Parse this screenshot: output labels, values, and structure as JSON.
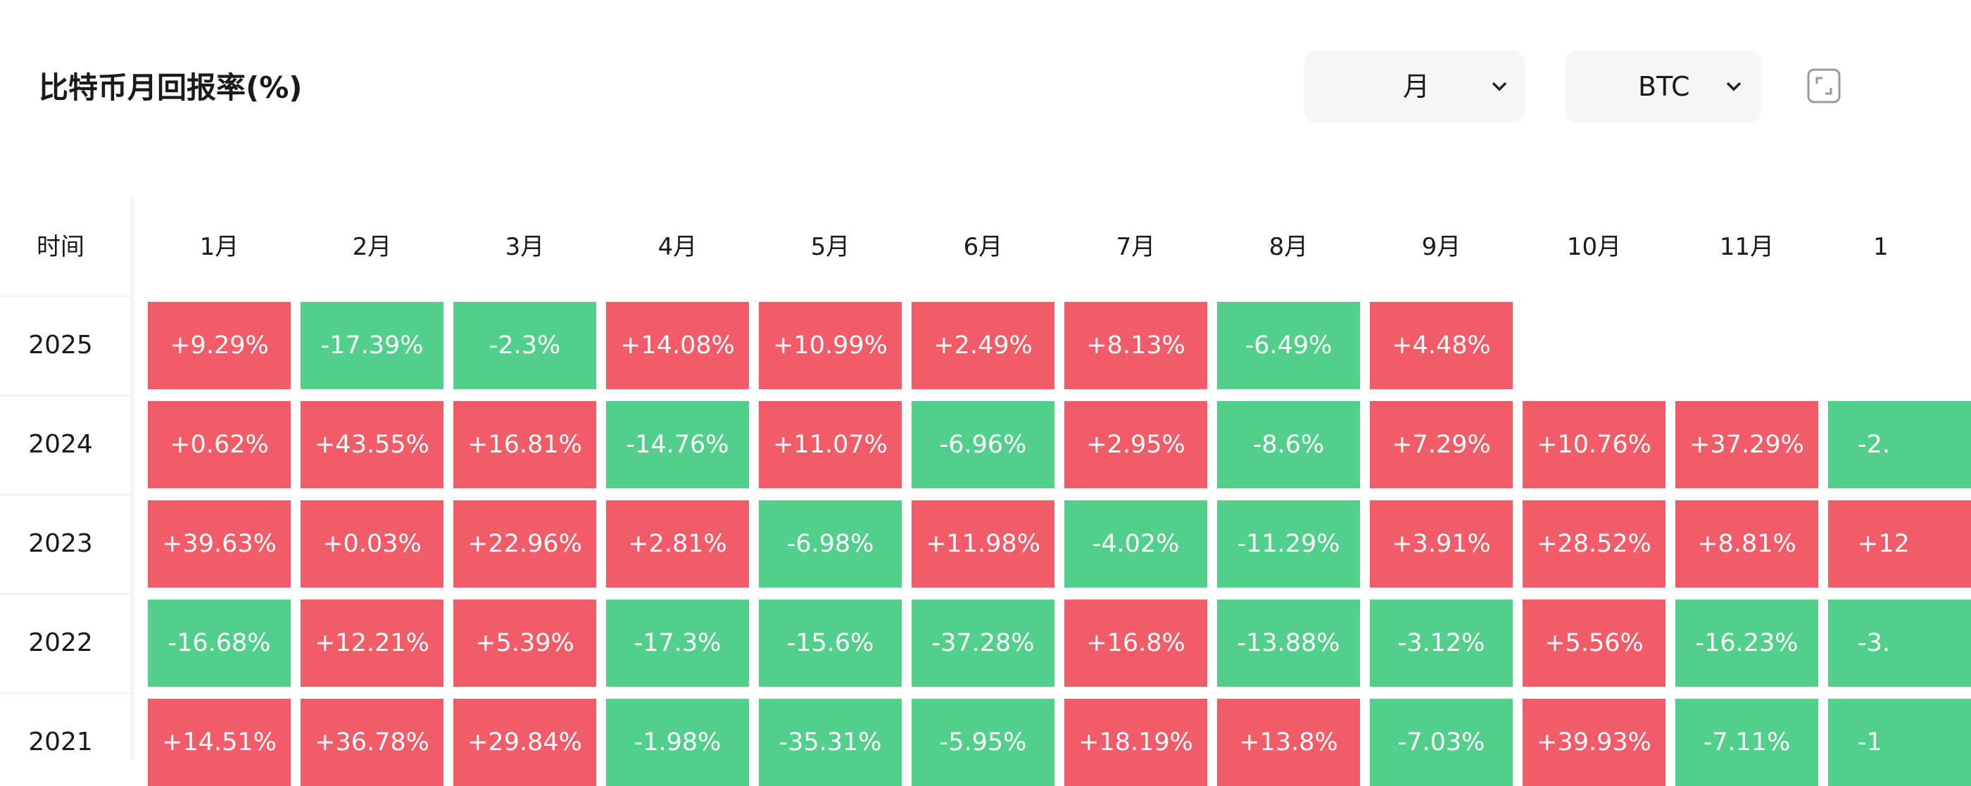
{
  "header": {
    "title": "比特币月回报率(%)",
    "period_select": "月",
    "asset_select": "BTC"
  },
  "table": {
    "columns": [
      "时间",
      "1月",
      "2月",
      "3月",
      "4月",
      "5月",
      "6月",
      "7月",
      "8月",
      "9月",
      "10月",
      "11月",
      "1"
    ],
    "rows": [
      [
        "2025",
        "+9.29%",
        "-17.39%",
        "-2.3%",
        "+14.08%",
        "+10.99%",
        "+2.49%",
        "+8.13%",
        "-6.49%",
        "+4.48%"
      ],
      [
        "2024",
        "+0.62%",
        "+43.55%",
        "+16.81%",
        "-14.76%",
        "+11.07%",
        "-6.96%",
        "+2.95%",
        "-8.6%",
        "+7.29%",
        "+10.76%",
        "+37.29%",
        "-2."
      ],
      [
        "2023",
        "+39.63%",
        "+0.03%",
        "+22.96%",
        "+2.81%",
        "-6.98%",
        "+11.98%",
        "-4.02%",
        "-11.29%",
        "+3.91%",
        "+28.52%",
        "+8.81%",
        "+12"
      ],
      [
        "2022",
        "-16.68%",
        "+12.21%",
        "+5.39%",
        "-17.3%",
        "-15.6%",
        "-37.28%",
        "+16.8%",
        "-13.88%",
        "-3.12%",
        "+5.56%",
        "-16.23%",
        "-3."
      ],
      [
        "2021",
        "+14.51%",
        "+36.78%",
        "+29.84%",
        "-1.98%",
        "-35.31%",
        "-5.95%",
        "+18.19%",
        "+13.8%",
        "-7.03%",
        "+39.93%",
        "-7.11%",
        "-1"
      ]
    ],
    "up_color": "#f25c69",
    "down_color": "#52cf8a"
  }
}
